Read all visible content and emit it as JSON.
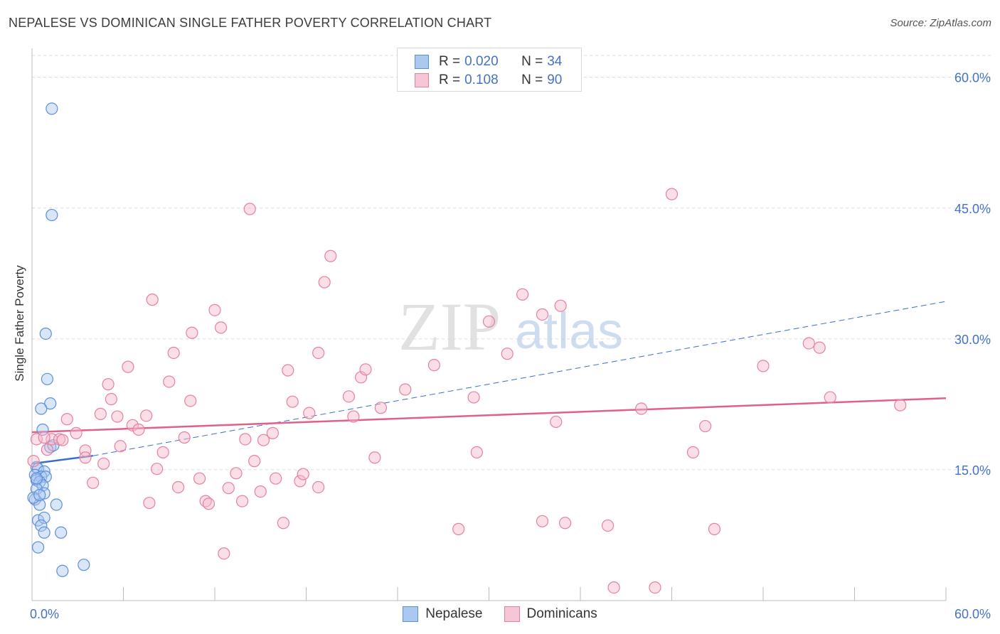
{
  "chart_data": {
    "type": "scatter",
    "title": "NEPALESE VS DOMINICAN SINGLE FATHER POVERTY CORRELATION CHART",
    "source": "Source: ZipAtlas.com",
    "ylabel": "Single Father Poverty",
    "xlabel": "",
    "xlim": [
      0,
      60
    ],
    "ylim": [
      0,
      62.5
    ],
    "x_tick_labels": [
      "0.0%",
      "60.0%"
    ],
    "y_ticks": [
      15,
      30,
      45,
      60
    ],
    "y_tick_labels": [
      "15.0%",
      "30.0%",
      "45.0%",
      "60.0%"
    ],
    "grid": true,
    "watermark": {
      "zip": "ZIP",
      "atlas": "atlas"
    },
    "legend_top": [
      {
        "r_label": "R = ",
        "r_value": "0.020",
        "n_label": "N = ",
        "n_value": "34"
      },
      {
        "r_label": "R = ",
        "r_value": "0.108",
        "n_label": "N = ",
        "n_value": "90"
      }
    ],
    "series": [
      {
        "name": "Nepalese",
        "color": "#5b8fd8",
        "fill": "#aac8f0",
        "trend": {
          "x": [
            0,
            4
          ],
          "y": [
            15.7,
            16.6
          ],
          "dash_x": [
            4,
            60
          ],
          "dash_y": [
            16.6,
            34.3
          ],
          "color": "#3a6fc8"
        },
        "points": [
          [
            1.3,
            56.4
          ],
          [
            1.3,
            44.2
          ],
          [
            0.9,
            30.6
          ],
          [
            1.0,
            25.4
          ],
          [
            1.2,
            22.6
          ],
          [
            0.6,
            22.0
          ],
          [
            0.7,
            19.6
          ],
          [
            1.2,
            17.6
          ],
          [
            1.4,
            17.8
          ],
          [
            0.3,
            15.3
          ],
          [
            0.4,
            15.1
          ],
          [
            0.8,
            14.8
          ],
          [
            0.2,
            14.4
          ],
          [
            0.6,
            14.2
          ],
          [
            0.9,
            14.2
          ],
          [
            0.3,
            13.8
          ],
          [
            0.5,
            13.6
          ],
          [
            0.7,
            13.2
          ],
          [
            0.3,
            12.8
          ],
          [
            0.8,
            12.3
          ],
          [
            0.2,
            11.6
          ],
          [
            0.5,
            11.0
          ],
          [
            1.6,
            11.0
          ],
          [
            0.4,
            9.2
          ],
          [
            0.8,
            9.5
          ],
          [
            0.6,
            8.6
          ],
          [
            0.8,
            7.8
          ],
          [
            1.9,
            7.8
          ],
          [
            0.4,
            6.1
          ],
          [
            2.0,
            3.4
          ],
          [
            3.4,
            4.1
          ],
          [
            0.1,
            11.8
          ],
          [
            0.3,
            14.0
          ],
          [
            0.5,
            12.1
          ]
        ]
      },
      {
        "name": "Dominicans",
        "color": "#e6809f",
        "fill": "#f6b8ca",
        "trend": {
          "x": [
            0,
            60
          ],
          "y": [
            19.3,
            23.2
          ],
          "color": "#e0608a"
        },
        "points": [
          [
            0.3,
            18.5
          ],
          [
            0.1,
            16.0
          ],
          [
            1.0,
            17.3
          ],
          [
            1.3,
            18.5
          ],
          [
            1.8,
            18.5
          ],
          [
            2.3,
            20.8
          ],
          [
            2.9,
            19.2
          ],
          [
            3.5,
            17.2
          ],
          [
            3.5,
            16.4
          ],
          [
            4.0,
            13.5
          ],
          [
            4.5,
            21.4
          ],
          [
            4.7,
            15.7
          ],
          [
            5.0,
            24.8
          ],
          [
            5.2,
            23.1
          ],
          [
            5.6,
            21.1
          ],
          [
            5.8,
            17.7
          ],
          [
            6.3,
            26.8
          ],
          [
            6.6,
            20.1
          ],
          [
            7.0,
            19.6
          ],
          [
            7.5,
            21.2
          ],
          [
            7.7,
            11.2
          ],
          [
            7.9,
            34.5
          ],
          [
            8.2,
            15.1
          ],
          [
            8.6,
            17.0
          ],
          [
            9.0,
            25.1
          ],
          [
            9.3,
            28.4
          ],
          [
            9.6,
            13.0
          ],
          [
            10.0,
            18.7
          ],
          [
            10.4,
            22.9
          ],
          [
            10.5,
            30.7
          ],
          [
            11.0,
            14.0
          ],
          [
            11.4,
            11.4
          ],
          [
            11.6,
            11.1
          ],
          [
            12.0,
            33.3
          ],
          [
            12.4,
            31.3
          ],
          [
            12.6,
            5.4
          ],
          [
            12.9,
            12.9
          ],
          [
            13.4,
            14.6
          ],
          [
            13.8,
            11.4
          ],
          [
            14.0,
            18.5
          ],
          [
            14.3,
            44.9
          ],
          [
            14.6,
            16.0
          ],
          [
            15.0,
            12.5
          ],
          [
            15.2,
            18.4
          ],
          [
            15.8,
            19.2
          ],
          [
            16.0,
            14.0
          ],
          [
            16.5,
            8.9
          ],
          [
            16.8,
            26.4
          ],
          [
            17.1,
            22.8
          ],
          [
            17.6,
            13.7
          ],
          [
            17.8,
            14.5
          ],
          [
            18.2,
            21.5
          ],
          [
            18.8,
            28.4
          ],
          [
            18.8,
            13.0
          ],
          [
            19.2,
            36.5
          ],
          [
            19.6,
            39.5
          ],
          [
            20.8,
            23.4
          ],
          [
            21.1,
            21.1
          ],
          [
            21.6,
            25.6
          ],
          [
            21.9,
            26.5
          ],
          [
            22.5,
            16.4
          ],
          [
            22.9,
            22.1
          ],
          [
            24.5,
            24.2
          ],
          [
            26.4,
            27.0
          ],
          [
            28.0,
            8.2
          ],
          [
            29.0,
            23.3
          ],
          [
            29.2,
            17.0
          ],
          [
            30.0,
            32.0
          ],
          [
            31.2,
            28.3
          ],
          [
            32.2,
            35.1
          ],
          [
            33.5,
            32.8
          ],
          [
            33.5,
            9.1
          ],
          [
            34.4,
            20.5
          ],
          [
            34.7,
            33.8
          ],
          [
            35.0,
            8.9
          ],
          [
            37.8,
            8.6
          ],
          [
            38.2,
            1.5
          ],
          [
            40.0,
            22.0
          ],
          [
            40.9,
            1.5
          ],
          [
            42.0,
            46.6
          ],
          [
            43.4,
            17.0
          ],
          [
            44.2,
            20.0
          ],
          [
            44.8,
            8.2
          ],
          [
            48.0,
            26.9
          ],
          [
            51.0,
            29.5
          ],
          [
            51.7,
            29.0
          ],
          [
            52.4,
            23.3
          ],
          [
            57.0,
            22.4
          ],
          [
            0.8,
            18.7
          ],
          [
            2.0,
            18.4
          ]
        ]
      }
    ]
  }
}
